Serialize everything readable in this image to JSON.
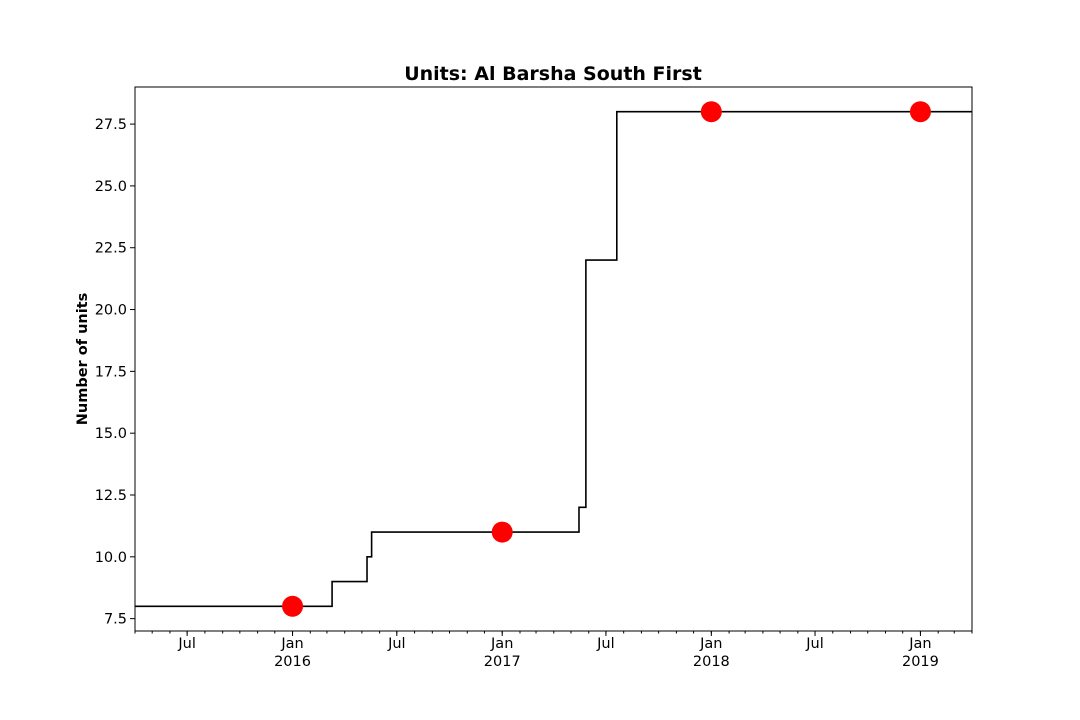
{
  "chart_data": {
    "type": "line",
    "title": "Units: Al Barsha South First",
    "xlabel": "",
    "ylabel": "Number of units",
    "xlim": [
      "2015-04-01",
      "2019-04-01"
    ],
    "ylim": [
      7.0,
      29.0
    ],
    "grid": false,
    "legend": "none",
    "y_ticks": [
      "7.5",
      "10.0",
      "12.5",
      "15.0",
      "17.5",
      "20.0",
      "22.5",
      "25.0",
      "27.5"
    ],
    "x_ticks": [
      {
        "date": "2015-07-01",
        "label": "Jul",
        "sublabel": ""
      },
      {
        "date": "2016-01-01",
        "label": "Jan",
        "sublabel": "2016"
      },
      {
        "date": "2016-07-01",
        "label": "Jul",
        "sublabel": ""
      },
      {
        "date": "2017-01-01",
        "label": "Jan",
        "sublabel": "2017"
      },
      {
        "date": "2017-07-01",
        "label": "Jul",
        "sublabel": ""
      },
      {
        "date": "2018-01-01",
        "label": "Jan",
        "sublabel": "2018"
      },
      {
        "date": "2018-07-01",
        "label": "Jul",
        "sublabel": ""
      },
      {
        "date": "2019-01-01",
        "label": "Jan",
        "sublabel": "2019"
      }
    ],
    "series": [
      {
        "style": "step",
        "color": "#000000",
        "points": [
          {
            "x": "2015-04-01",
            "y": 8
          },
          {
            "x": "2016-03-10",
            "y": 9
          },
          {
            "x": "2016-05-10",
            "y": 10
          },
          {
            "x": "2016-05-18",
            "y": 11
          },
          {
            "x": "2017-05-15",
            "y": 12
          },
          {
            "x": "2017-05-27",
            "y": 22
          },
          {
            "x": "2017-07-20",
            "y": 28
          },
          {
            "x": "2019-04-01",
            "y": 28
          }
        ]
      },
      {
        "style": "markers",
        "color": "#ff0000",
        "points": [
          {
            "x": "2016-01-01",
            "y": 8
          },
          {
            "x": "2017-01-01",
            "y": 11
          },
          {
            "x": "2018-01-01",
            "y": 28
          },
          {
            "x": "2019-01-01",
            "y": 28
          }
        ]
      }
    ]
  }
}
